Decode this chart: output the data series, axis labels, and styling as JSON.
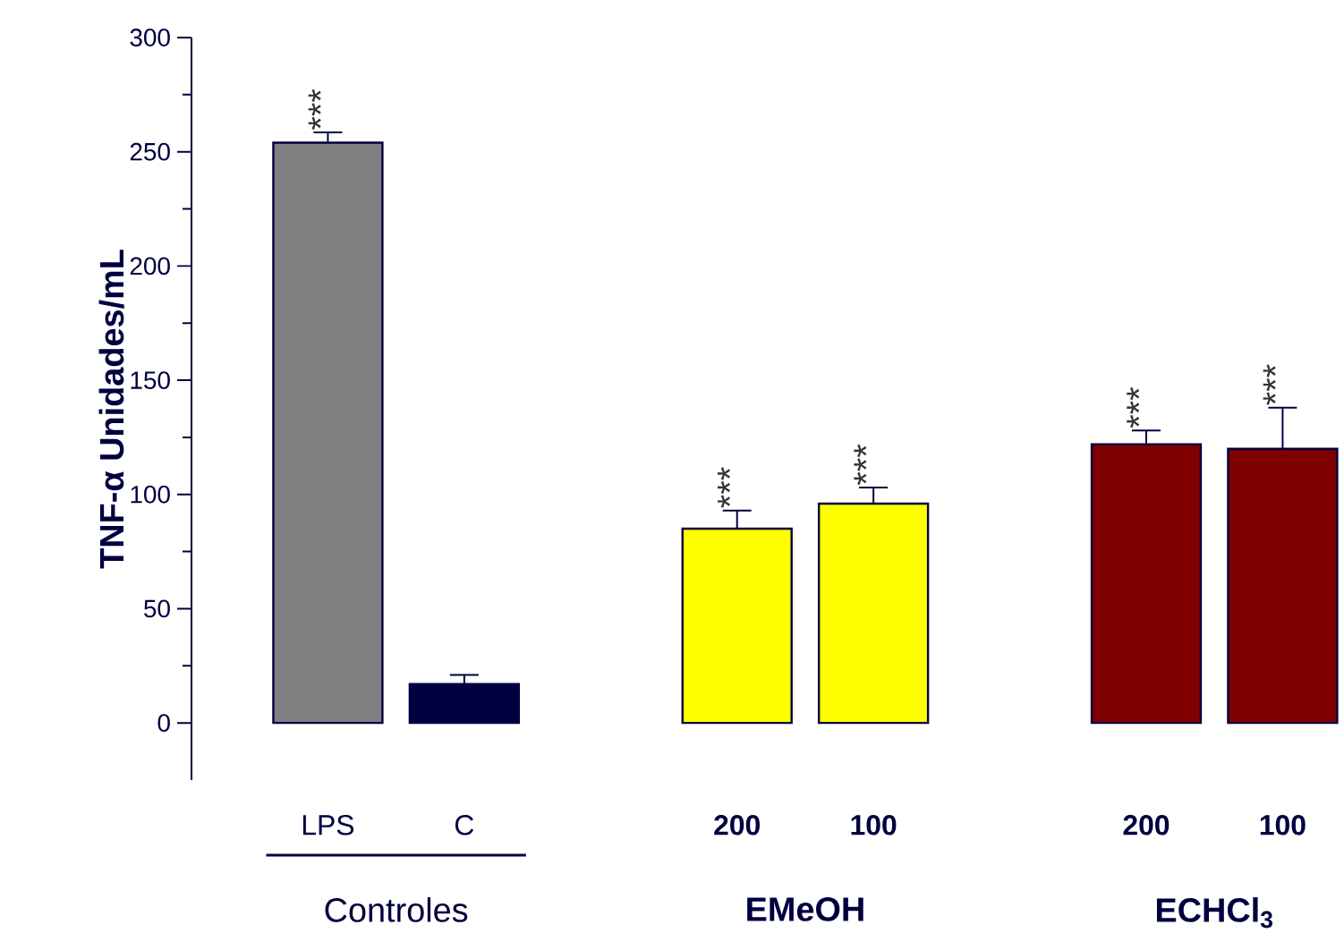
{
  "chart_data": {
    "type": "bar",
    "ylabel": "TNF-α Unidades/mL",
    "categories": [
      "LPS",
      "C",
      null,
      "200",
      "100",
      null,
      "200",
      "100"
    ],
    "values": [
      254,
      17,
      null,
      85,
      96,
      null,
      122,
      120
    ],
    "errors": [
      4.5,
      4,
      null,
      8,
      7,
      null,
      6,
      18
    ],
    "colors": [
      "#808080",
      "#000040",
      null,
      "#ffff00",
      "#ffff00",
      null,
      "#800000",
      "#800000"
    ],
    "value_labels": [
      "***",
      null,
      null,
      "***",
      "***",
      null,
      "***",
      "***"
    ],
    "annotations": [
      "Controles",
      "EMeOH",
      "ECHCl$_{3}$"
    ],
    "ylim": [
      -25,
      300
    ],
    "yticks": [
      0,
      50,
      100,
      150,
      200,
      250,
      300
    ]
  }
}
